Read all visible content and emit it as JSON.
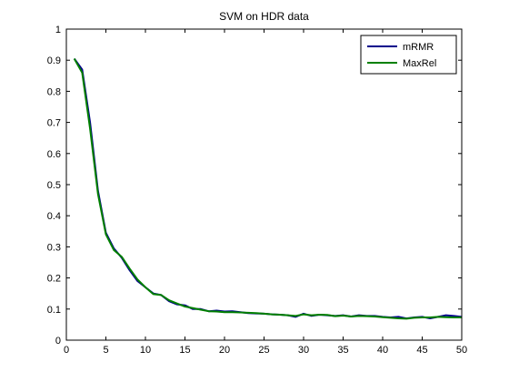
{
  "chart_data": {
    "type": "line",
    "title": "SVM on HDR data",
    "xlabel": "",
    "ylabel": "",
    "xlim": [
      0,
      50
    ],
    "ylim": [
      0,
      1
    ],
    "xticks": [
      0,
      5,
      10,
      15,
      20,
      25,
      30,
      35,
      40,
      45,
      50
    ],
    "yticks": [
      0,
      0.1,
      0.2,
      0.3,
      0.4,
      0.5,
      0.6,
      0.7,
      0.8,
      0.9,
      1
    ],
    "grid": false,
    "legend_position": "top-right",
    "x": [
      1,
      2,
      3,
      4,
      5,
      6,
      7,
      8,
      9,
      10,
      11,
      12,
      13,
      14,
      15,
      16,
      17,
      18,
      19,
      20,
      21,
      22,
      23,
      24,
      25,
      26,
      27,
      28,
      29,
      30,
      31,
      32,
      33,
      34,
      35,
      36,
      37,
      38,
      39,
      40,
      41,
      42,
      43,
      44,
      45,
      46,
      47,
      48,
      49,
      50
    ],
    "series": [
      {
        "name": "mRMR",
        "color": "#00008b",
        "values": [
          0.905,
          0.87,
          0.7,
          0.48,
          0.345,
          0.295,
          0.265,
          0.225,
          0.19,
          0.17,
          0.15,
          0.145,
          0.125,
          0.115,
          0.112,
          0.1,
          0.1,
          0.093,
          0.095,
          0.092,
          0.093,
          0.09,
          0.087,
          0.086,
          0.085,
          0.083,
          0.082,
          0.08,
          0.075,
          0.085,
          0.078,
          0.082,
          0.08,
          0.078,
          0.08,
          0.076,
          0.08,
          0.078,
          0.078,
          0.075,
          0.073,
          0.075,
          0.07,
          0.073,
          0.075,
          0.07,
          0.075,
          0.08,
          0.078,
          0.075
        ]
      },
      {
        "name": "MaxRel",
        "color": "#008000",
        "values": [
          0.905,
          0.86,
          0.68,
          0.47,
          0.34,
          0.29,
          0.268,
          0.23,
          0.195,
          0.17,
          0.148,
          0.145,
          0.128,
          0.118,
          0.108,
          0.103,
          0.098,
          0.093,
          0.092,
          0.09,
          0.09,
          0.089,
          0.088,
          0.087,
          0.085,
          0.083,
          0.082,
          0.08,
          0.078,
          0.083,
          0.08,
          0.082,
          0.081,
          0.077,
          0.079,
          0.076,
          0.078,
          0.077,
          0.076,
          0.074,
          0.072,
          0.07,
          0.069,
          0.072,
          0.073,
          0.073,
          0.075,
          0.074,
          0.073,
          0.073
        ]
      }
    ]
  }
}
